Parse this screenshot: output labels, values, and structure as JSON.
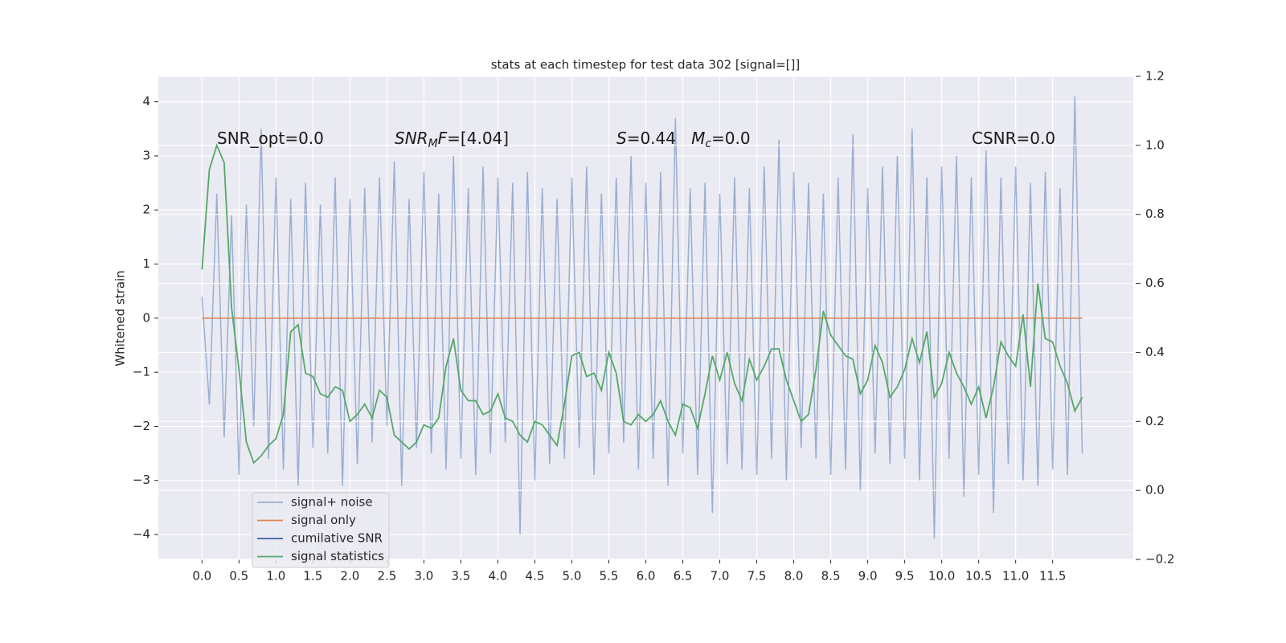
{
  "chart_data": {
    "type": "line",
    "title": "stats at each timestep for test data 302 [signal=[]]",
    "ylabel": "Whitened strain",
    "background": "#eaeaf2",
    "grid": true,
    "legend_position": "lower left",
    "x": [
      0,
      0.1,
      0.2,
      0.3,
      0.4,
      0.5,
      0.6,
      0.7,
      0.8,
      0.9,
      1,
      1.1,
      1.2,
      1.3,
      1.4,
      1.5,
      1.6,
      1.7,
      1.8,
      1.9,
      2,
      2.1,
      2.2,
      2.3,
      2.4,
      2.5,
      2.6,
      2.7,
      2.8,
      2.9,
      3,
      3.1,
      3.2,
      3.3,
      3.4,
      3.5,
      3.6,
      3.7,
      3.8,
      3.9,
      4,
      4.1,
      4.2,
      4.3,
      4.4,
      4.5,
      4.6,
      4.7,
      4.8,
      4.9,
      5,
      5.1,
      5.2,
      5.3,
      5.4,
      5.5,
      5.6,
      5.7,
      5.8,
      5.9,
      6,
      6.1,
      6.2,
      6.3,
      6.4,
      6.5,
      6.6,
      6.7,
      6.8,
      6.9,
      7,
      7.1,
      7.2,
      7.3,
      7.4,
      7.5,
      7.6,
      7.7,
      7.8,
      7.9,
      8,
      8.1,
      8.2,
      8.3,
      8.4,
      8.5,
      8.6,
      8.7,
      8.8,
      8.9,
      9,
      9.1,
      9.2,
      9.3,
      9.4,
      9.5,
      9.6,
      9.7,
      9.8,
      9.9,
      10,
      10.1,
      10.2,
      10.3,
      10.4,
      10.5,
      10.6,
      10.7,
      10.8,
      10.9,
      11,
      11.1,
      11.2,
      11.3,
      11.4,
      11.5,
      11.6,
      11.7,
      11.8,
      11.9
    ],
    "series": [
      {
        "name": "signal+ noise",
        "color": "#4c72b0",
        "alpha": 0.5,
        "values": [
          0.4,
          -1.6,
          2.3,
          -2.2,
          1.9,
          -2.9,
          2.1,
          -2.0,
          3.5,
          -2.6,
          2.6,
          -2.8,
          2.2,
          -3.1,
          2.5,
          -2.4,
          2.1,
          -2.5,
          2.6,
          -3.1,
          2.2,
          -2.7,
          2.4,
          -2.3,
          2.6,
          -2.0,
          2.9,
          -3.1,
          2.2,
          -2.4,
          2.7,
          -2.5,
          2.3,
          -2.8,
          3.0,
          -2.6,
          2.4,
          -2.9,
          2.8,
          -2.5,
          2.6,
          -2.3,
          2.5,
          -4.0,
          2.7,
          -3.0,
          2.4,
          -2.7,
          2.2,
          -2.6,
          2.6,
          -2.4,
          2.8,
          -2.9,
          2.3,
          -2.5,
          2.6,
          -2.3,
          3.0,
          -2.8,
          2.5,
          -2.6,
          2.7,
          -3.1,
          3.7,
          -2.5,
          2.4,
          -2.9,
          2.5,
          -3.6,
          2.3,
          -2.7,
          2.6,
          -2.8,
          2.4,
          -2.9,
          2.8,
          -2.6,
          3.3,
          -3.0,
          2.7,
          -2.4,
          2.5,
          -2.6,
          2.3,
          -2.9,
          2.6,
          -2.8,
          3.4,
          -3.2,
          2.4,
          -2.5,
          2.8,
          -2.7,
          3.0,
          -2.6,
          3.5,
          -3.0,
          2.6,
          -4.07,
          2.8,
          -2.6,
          3.0,
          -3.3,
          2.6,
          -2.9,
          3.1,
          -3.6,
          2.6,
          -2.7,
          2.8,
          -3.0,
          2.5,
          -3.1,
          2.7,
          -2.8,
          2.4,
          -2.9,
          4.1,
          -2.5
        ]
      },
      {
        "name": "signal only",
        "color": "#dd8452",
        "values": [
          0,
          0,
          0,
          0,
          0,
          0,
          0,
          0,
          0,
          0,
          0,
          0,
          0,
          0,
          0,
          0,
          0,
          0,
          0,
          0,
          0,
          0,
          0,
          0,
          0,
          0,
          0,
          0,
          0,
          0,
          0,
          0,
          0,
          0,
          0,
          0,
          0,
          0,
          0,
          0,
          0,
          0,
          0,
          0,
          0,
          0,
          0,
          0,
          0,
          0,
          0,
          0,
          0,
          0,
          0,
          0,
          0,
          0,
          0,
          0,
          0,
          0,
          0,
          0,
          0,
          0,
          0,
          0,
          0,
          0,
          0,
          0,
          0,
          0,
          0,
          0,
          0,
          0,
          0,
          0,
          0,
          0,
          0,
          0,
          0,
          0,
          0,
          0,
          0,
          0,
          0,
          0,
          0,
          0,
          0,
          0,
          0,
          0,
          0,
          0,
          0,
          0,
          0,
          0,
          0,
          0,
          0,
          0,
          0,
          0,
          0,
          0,
          0,
          0,
          0,
          0,
          0,
          0,
          0,
          0
        ]
      },
      {
        "name": "cumilative SNR",
        "color": "#3a5fa0",
        "values": [
          null,
          null,
          null,
          null,
          null,
          null,
          null,
          null,
          null,
          null,
          null,
          null,
          null,
          null,
          null,
          null,
          null,
          null,
          null,
          null,
          null,
          null,
          null,
          null,
          null,
          null,
          null,
          null,
          null,
          null,
          null,
          null,
          null,
          null,
          null,
          null,
          null,
          null,
          null,
          null,
          null,
          null,
          null,
          null,
          null,
          null,
          null,
          null,
          null,
          null,
          null,
          null,
          null,
          null,
          null,
          null,
          null,
          null,
          null,
          null,
          null,
          null,
          null,
          null,
          null,
          null,
          null,
          null,
          null,
          null,
          null,
          null,
          null,
          null,
          null,
          null,
          null,
          null,
          null,
          null,
          null,
          null,
          null,
          null,
          null,
          null,
          null,
          null,
          null,
          null,
          null,
          null,
          null,
          null,
          null,
          null,
          null,
          null,
          null,
          null,
          null,
          null,
          null,
          null,
          null,
          null,
          null,
          null,
          null,
          null,
          null,
          null,
          null,
          null,
          null,
          null,
          null,
          null,
          null,
          null
        ]
      },
      {
        "name": "signal statistics",
        "color": "#55a868",
        "axis": "y2",
        "values": [
          0.64,
          0.93,
          1.0,
          0.95,
          0.53,
          0.35,
          0.14,
          0.08,
          0.1,
          0.13,
          0.15,
          0.22,
          0.46,
          0.48,
          0.34,
          0.33,
          0.28,
          0.27,
          0.3,
          0.29,
          0.2,
          0.22,
          0.25,
          0.21,
          0.29,
          0.27,
          0.16,
          0.14,
          0.12,
          0.14,
          0.19,
          0.18,
          0.21,
          0.36,
          0.44,
          0.29,
          0.26,
          0.26,
          0.22,
          0.23,
          0.28,
          0.21,
          0.2,
          0.16,
          0.14,
          0.2,
          0.19,
          0.16,
          0.13,
          0.25,
          0.39,
          0.4,
          0.33,
          0.34,
          0.29,
          0.4,
          0.34,
          0.2,
          0.19,
          0.22,
          0.2,
          0.22,
          0.26,
          0.2,
          0.16,
          0.25,
          0.24,
          0.18,
          0.28,
          0.39,
          0.32,
          0.4,
          0.31,
          0.26,
          0.38,
          0.32,
          0.36,
          0.41,
          0.41,
          0.32,
          0.26,
          0.2,
          0.22,
          0.35,
          0.52,
          0.45,
          0.42,
          0.39,
          0.38,
          0.28,
          0.32,
          0.42,
          0.37,
          0.27,
          0.3,
          0.35,
          0.44,
          0.37,
          0.46,
          0.27,
          0.31,
          0.4,
          0.34,
          0.3,
          0.25,
          0.3,
          0.21,
          0.3,
          0.43,
          0.39,
          0.36,
          0.51,
          0.3,
          0.6,
          0.44,
          0.43,
          0.36,
          0.31,
          0.23,
          0.27
        ]
      }
    ],
    "xlim": [
      -0.59,
      12.59
    ],
    "xticks": [
      {
        "value": 0,
        "label": "0.0"
      },
      0.5,
      {
        "value": 1,
        "label": "1.0"
      },
      1.5,
      {
        "value": 2,
        "label": "2.0"
      },
      2.5,
      {
        "value": 3,
        "label": "3.0"
      },
      3.5,
      {
        "value": 4,
        "label": "4.0"
      },
      4.5,
      {
        "value": 5,
        "label": "5.0"
      },
      5.5,
      {
        "value": 6,
        "label": "6.0"
      },
      6.5,
      {
        "value": 7,
        "label": "7.0"
      },
      7.5,
      {
        "value": 8,
        "label": "8.0"
      },
      8.5,
      {
        "value": 9,
        "label": "9.0"
      },
      9.5,
      {
        "value": 10,
        "label": "10.0"
      },
      10.5,
      {
        "value": 11,
        "label": "11.0"
      },
      11.5
    ],
    "ylim": [
      -4.46,
      4.47
    ],
    "yticks": [
      {
        "value": -4,
        "label": "−4"
      },
      {
        "value": -3,
        "label": "−3"
      },
      {
        "value": -2,
        "label": "−2"
      },
      {
        "value": -1,
        "label": "−1"
      },
      0,
      1,
      2,
      3,
      4
    ],
    "y2lim": [
      -0.2,
      1.2
    ],
    "y2ticks": [
      {
        "value": -0.2,
        "label": "−0.2"
      },
      {
        "value": 0,
        "label": "0.0"
      },
      0.2,
      0.4,
      0.6,
      0.8,
      {
        "value": 1,
        "label": "1.0"
      },
      1.2
    ],
    "annotations": [
      {
        "parts": [
          {
            "t": "SNR_opt=0.0"
          }
        ]
      },
      {
        "parts": [
          {
            "t": "SNR",
            "italic": true
          },
          {
            "t": "M",
            "italic": true,
            "sub": true
          },
          {
            "t": "F",
            "italic": true
          },
          {
            "t": "=[4.04]"
          }
        ]
      },
      {
        "parts": [
          {
            "t": "S",
            "italic": true
          },
          {
            "t": "=0.44   "
          },
          {
            "t": "M",
            "italic": true
          },
          {
            "t": "c",
            "italic": true,
            "sub": true
          },
          {
            "t": "=0.0"
          }
        ]
      },
      {
        "parts": [
          {
            "t": "CSNR=0.0"
          }
        ]
      }
    ]
  }
}
